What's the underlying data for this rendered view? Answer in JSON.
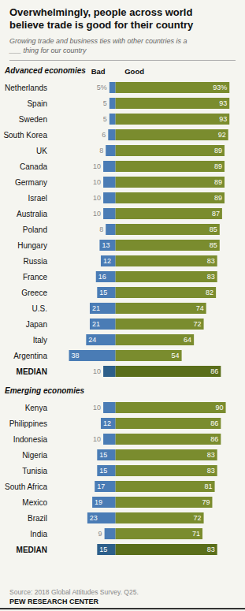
{
  "chart_data": [
    {
      "type": "bar",
      "orientation": "horizontal",
      "title": "Overwhelmingly, people across world\nbelieve trade is good for their country",
      "subtitle": "Growing trade and business ties with other countries is a\n___ thing for our country",
      "ylabel": "Advanced economies",
      "categories": [
        "Netherlands",
        "Spain",
        "Sweden",
        "South Korea",
        "UK",
        "Canada",
        "Germany",
        "Israel",
        "Australia",
        "Poland",
        "Hungary",
        "Russia",
        "France",
        "Greece",
        "U.S.",
        "Japan",
        "Italy",
        "Argentina",
        "MEDIAN"
      ],
      "series": [
        {
          "name": "Bad",
          "colors": [
            "#4a7cb5",
            "#4a7cb5",
            "#4a7cb5",
            "#4a7cb5",
            "#4a7cb5",
            "#4a7cb5",
            "#4a7cb5",
            "#4a7cb5",
            "#4a7cb5",
            "#4a7cb5",
            "#4a7cb5",
            "#4a7cb5",
            "#4a7cb5",
            "#4a7cb5",
            "#4a7cb5",
            "#4a7cb5",
            "#4a7cb5",
            "#4a7cb5",
            "#2d5f8a"
          ],
          "values": [
            5,
            5,
            5,
            6,
            8,
            10,
            10,
            10,
            10,
            8,
            13,
            12,
            16,
            15,
            21,
            21,
            24,
            38,
            10
          ],
          "value_labels": [
            "5%",
            "5",
            "5",
            "6",
            "8",
            "10",
            "10",
            "10",
            "10",
            "8",
            "13",
            "12",
            "16",
            "15",
            "21",
            "21",
            "24",
            "38",
            "10"
          ]
        },
        {
          "name": "Good",
          "colors": [
            "#7a8c2e",
            "#7a8c2e",
            "#7a8c2e",
            "#7a8c2e",
            "#7a8c2e",
            "#7a8c2e",
            "#7a8c2e",
            "#7a8c2e",
            "#7a8c2e",
            "#7a8c2e",
            "#7a8c2e",
            "#7a8c2e",
            "#7a8c2e",
            "#7a8c2e",
            "#7a8c2e",
            "#7a8c2e",
            "#7a8c2e",
            "#7a8c2e",
            "#5a6e1a"
          ],
          "values": [
            93,
            93,
            93,
            92,
            89,
            89,
            89,
            89,
            87,
            85,
            85,
            83,
            83,
            82,
            74,
            72,
            64,
            54,
            86
          ],
          "value_labels": [
            "93%",
            "93",
            "93",
            "92",
            "89",
            "89",
            "89",
            "89",
            "87",
            "85",
            "85",
            "83",
            "83",
            "82",
            "74",
            "72",
            "64",
            "54",
            "86"
          ]
        }
      ],
      "xlim": [
        -48,
        98
      ],
      "data_labels": true,
      "tick_labels": "y",
      "grid": false
    },
    {
      "type": "bar",
      "orientation": "horizontal",
      "ylabel": "Emerging economies",
      "categories": [
        "Kenya",
        "Philippines",
        "Indonesia",
        "Nigeria",
        "Tunisia",
        "South Africa",
        "Mexico",
        "Brazil",
        "India",
        "MEDIAN"
      ],
      "series": [
        {
          "colors": [
            "#4a7cb5",
            "#4a7cb5",
            "#4a7cb5",
            "#4a7cb5",
            "#4a7cb5",
            "#4a7cb5",
            "#4a7cb5",
            "#4a7cb5",
            "#4a7cb5",
            "#2d5f8a"
          ],
          "values": [
            10,
            12,
            10,
            15,
            15,
            17,
            19,
            23,
            9,
            15
          ]
        },
        {
          "colors": [
            "#7a8c2e",
            "#7a8c2e",
            "#7a8c2e",
            "#7a8c2e",
            "#7a8c2e",
            "#7a8c2e",
            "#7a8c2e",
            "#7a8c2e",
            "#7a8c2e",
            "#5a6e1a"
          ],
          "values": [
            90,
            86,
            86,
            83,
            83,
            81,
            79,
            72,
            71,
            83
          ]
        }
      ],
      "annotations": [
        "Source: 2018 Global Attitudes Survey. Q25.",
        "PEW RESEARCH CENTER"
      ],
      "xlim": [
        -48,
        98
      ],
      "data_labels": true,
      "tick_labels": "y",
      "grid": false
    }
  ]
}
